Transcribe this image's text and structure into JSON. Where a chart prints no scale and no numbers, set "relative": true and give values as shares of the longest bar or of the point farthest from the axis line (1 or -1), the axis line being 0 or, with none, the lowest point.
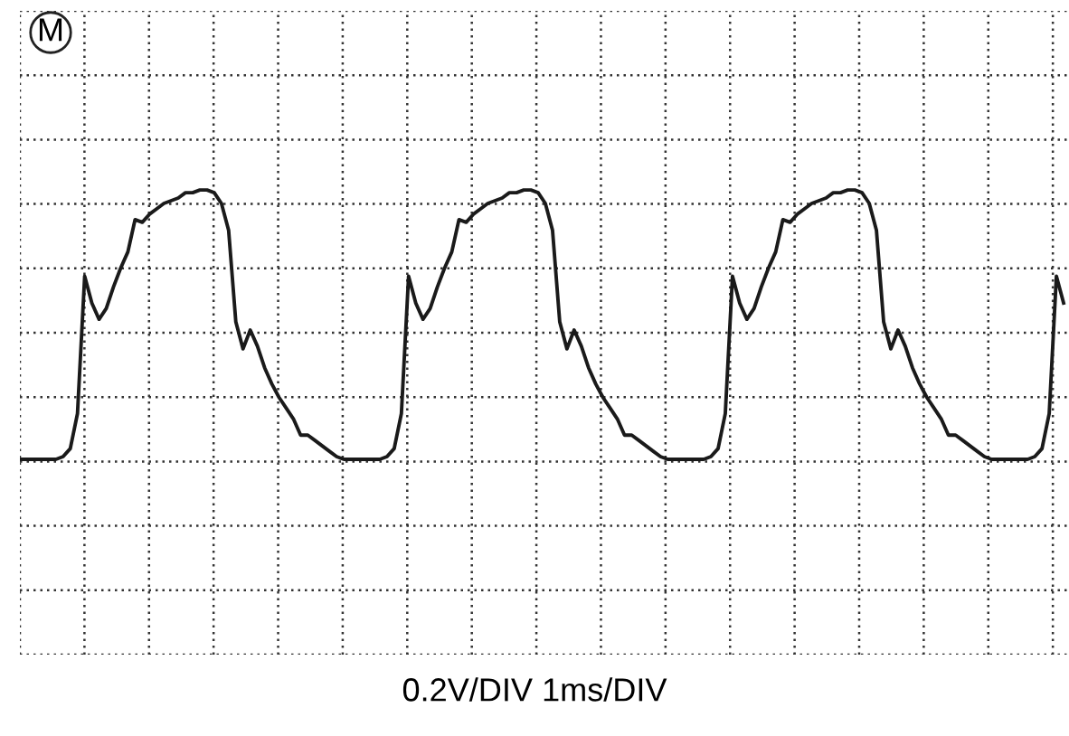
{
  "chart_data": {
    "type": "line",
    "relative": true,
    "categories": [
      null,
      null,
      null,
      null,
      null,
      null,
      null,
      null,
      null,
      null,
      null,
      null,
      null,
      null,
      null,
      null,
      null,
      null,
      null,
      null,
      null,
      null,
      null,
      null,
      null,
      null,
      null,
      null,
      null,
      null,
      null,
      null,
      null,
      null,
      null,
      null,
      null,
      null,
      null,
      null,
      null,
      null,
      null,
      null,
      null,
      null,
      null,
      null,
      null,
      null,
      null,
      null,
      null,
      null,
      null,
      null,
      null,
      null,
      null,
      null,
      null,
      null,
      null,
      null,
      null,
      null,
      null,
      null,
      null,
      null,
      null,
      null,
      null,
      null,
      null,
      null,
      null,
      null,
      null,
      null,
      null,
      null,
      null,
      null,
      null,
      null,
      null,
      null,
      null,
      null,
      null,
      null,
      null,
      null,
      null,
      null,
      null,
      null,
      null,
      null,
      null,
      null,
      null,
      null,
      null,
      null,
      null,
      null,
      null,
      null,
      null,
      null,
      null,
      null,
      null,
      null,
      null,
      null,
      null,
      null,
      null,
      null,
      null,
      null,
      null,
      null,
      null,
      null,
      null,
      null,
      null,
      null,
      null,
      null,
      null,
      null,
      null,
      null,
      null,
      null,
      null,
      null,
      null,
      null,
      null,
      null
    ],
    "series": [
      {
        "color": "#1a1a1a",
        "values": [
          0,
          0,
          0,
          0,
          0,
          0,
          0.01,
          0.04,
          0.17,
          0.68,
          0.58,
          0.52,
          0.56,
          0.64,
          0.71,
          0.77,
          0.89,
          0.88,
          0.91,
          0.93,
          0.95,
          0.96,
          0.97,
          0.99,
          0.99,
          1.0,
          1.0,
          0.99,
          0.95,
          0.85,
          0.51,
          0.41,
          0.48,
          0.42,
          0.34,
          0.28,
          0.23,
          0.19,
          0.15,
          0.09,
          0.09,
          0.07,
          0.05,
          0.03,
          0.01,
          0,
          0,
          0,
          0,
          0,
          0,
          0.01,
          0.04,
          0.17,
          0.68,
          0.58,
          0.52,
          0.56,
          0.64,
          0.71,
          0.77,
          0.89,
          0.88,
          0.91,
          0.93,
          0.95,
          0.96,
          0.97,
          0.99,
          0.99,
          1.0,
          1.0,
          0.99,
          0.95,
          0.85,
          0.51,
          0.41,
          0.48,
          0.42,
          0.34,
          0.28,
          0.23,
          0.19,
          0.15,
          0.09,
          0.09,
          0.07,
          0.05,
          0.03,
          0.01,
          0,
          0,
          0,
          0,
          0,
          0,
          0.01,
          0.04,
          0.17,
          0.68,
          0.58,
          0.52,
          0.56,
          0.64,
          0.71,
          0.77,
          0.89,
          0.88,
          0.91,
          0.93,
          0.95,
          0.96,
          0.97,
          0.99,
          0.99,
          1.0,
          1.0,
          0.99,
          0.95,
          0.85,
          0.51,
          0.41,
          0.48,
          0.42,
          0.34,
          0.28,
          0.23,
          0.19,
          0.15,
          0.09,
          0.09,
          0.07,
          0.05,
          0.03,
          0.01,
          0,
          0,
          0,
          0,
          0,
          0,
          0.01,
          0.04,
          0.17,
          0.68,
          0.58
        ]
      }
    ],
    "grid": true,
    "marker": "none",
    "line_style": "solid",
    "annotations": [
      "M",
      "0.2V/DIV 1ms/DIV"
    ]
  }
}
